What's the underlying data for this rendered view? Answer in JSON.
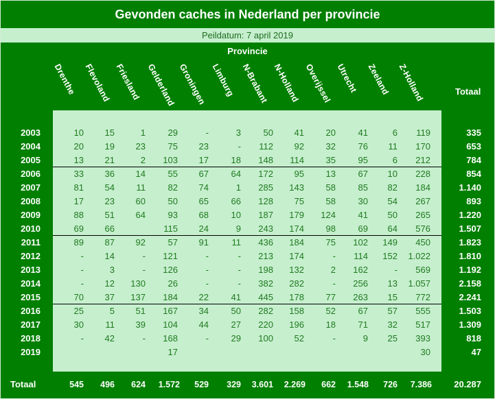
{
  "title": "Gevonden caches in Nederland per provincie",
  "peildatum": "Peildatum: 7 april 2019",
  "provincie_label": "Provincie",
  "totaal_header": "Totaal",
  "columns": [
    "Drenthe",
    "Flevoland",
    "Friesland",
    "Gelderland",
    "Groningen",
    "Limburg",
    "N-Brabant",
    "N-Holland",
    "Overijssel",
    "Utrecht",
    "Zeeland",
    "Z-Holland"
  ],
  "rows": [
    {
      "year": "2003",
      "values": [
        "10",
        "15",
        "1",
        "29",
        "-",
        "3",
        "50",
        "41",
        "20",
        "41",
        "6",
        "119"
      ],
      "total": "335"
    },
    {
      "year": "2004",
      "values": [
        "20",
        "19",
        "23",
        "75",
        "23",
        "-",
        "112",
        "92",
        "32",
        "76",
        "11",
        "170"
      ],
      "total": "653"
    },
    {
      "year": "2005",
      "values": [
        "13",
        "21",
        "2",
        "103",
        "17",
        "18",
        "148",
        "114",
        "35",
        "95",
        "6",
        "212"
      ],
      "total": "784"
    },
    {
      "year": "2006",
      "values": [
        "33",
        "36",
        "14",
        "55",
        "67",
        "64",
        "172",
        "95",
        "13",
        "67",
        "10",
        "228"
      ],
      "total": "854"
    },
    {
      "year": "2007",
      "values": [
        "81",
        "54",
        "11",
        "82",
        "74",
        "1",
        "285",
        "143",
        "58",
        "85",
        "82",
        "184"
      ],
      "total": "1.140"
    },
    {
      "year": "2008",
      "values": [
        "17",
        "23",
        "60",
        "50",
        "65",
        "66",
        "128",
        "75",
        "58",
        "30",
        "54",
        "267"
      ],
      "total": "893"
    },
    {
      "year": "2009",
      "values": [
        "88",
        "51",
        "64",
        "93",
        "68",
        "10",
        "187",
        "179",
        "124",
        "41",
        "50",
        "265"
      ],
      "total": "1.220"
    },
    {
      "year": "2010",
      "values": [
        "69",
        "66",
        "",
        "115",
        "24",
        "9",
        "243",
        "174",
        "98",
        "69",
        "64",
        "576"
      ],
      "total": "1.507"
    },
    {
      "year": "2011",
      "values": [
        "89",
        "87",
        "92",
        "57",
        "91",
        "11",
        "436",
        "184",
        "75",
        "102",
        "149",
        "450"
      ],
      "total": "1.823"
    },
    {
      "year": "2012",
      "values": [
        "-",
        "14",
        "-",
        "121",
        "-",
        "-",
        "213",
        "174",
        "-",
        "114",
        "152",
        "1.022"
      ],
      "total": "1.810"
    },
    {
      "year": "2013",
      "values": [
        "-",
        "3",
        "-",
        "126",
        "-",
        "-",
        "198",
        "132",
        "2",
        "162",
        "-",
        "569"
      ],
      "total": "1.192"
    },
    {
      "year": "2014",
      "values": [
        "-",
        "12",
        "130",
        "26",
        "-",
        "-",
        "382",
        "282",
        "-",
        "256",
        "13",
        "1.057"
      ],
      "total": "2.158"
    },
    {
      "year": "2015",
      "values": [
        "70",
        "37",
        "137",
        "184",
        "22",
        "41",
        "445",
        "178",
        "77",
        "263",
        "15",
        "772"
      ],
      "total": "2.241"
    },
    {
      "year": "2016",
      "values": [
        "25",
        "5",
        "51",
        "167",
        "34",
        "50",
        "282",
        "158",
        "52",
        "67",
        "57",
        "555"
      ],
      "total": "1.503"
    },
    {
      "year": "2017",
      "values": [
        "30",
        "11",
        "39",
        "104",
        "44",
        "27",
        "220",
        "196",
        "18",
        "71",
        "32",
        "517"
      ],
      "total": "1.309"
    },
    {
      "year": "2018",
      "values": [
        "-",
        "42",
        "-",
        "168",
        "-",
        "29",
        "100",
        "52",
        "-",
        "9",
        "25",
        "393"
      ],
      "total": "818"
    },
    {
      "year": "2019",
      "values": [
        "",
        "",
        "",
        "17",
        "",
        "",
        "",
        "",
        "",
        "",
        "",
        "30"
      ],
      "total": "47"
    }
  ],
  "totals": {
    "label": "Totaal",
    "values": [
      "545",
      "496",
      "624",
      "1.572",
      "529",
      "329",
      "3.601",
      "2.269",
      "662",
      "1.548",
      "726",
      "7.386"
    ],
    "grand_total": "20.287"
  },
  "separators_after_years": [
    "2005",
    "2010",
    "2015"
  ],
  "colors": {
    "frame_green": "#007f00",
    "panel_light_green": "#c6efce",
    "cell_text_green": "#1f7a1f",
    "header_text": "#ffffff"
  }
}
